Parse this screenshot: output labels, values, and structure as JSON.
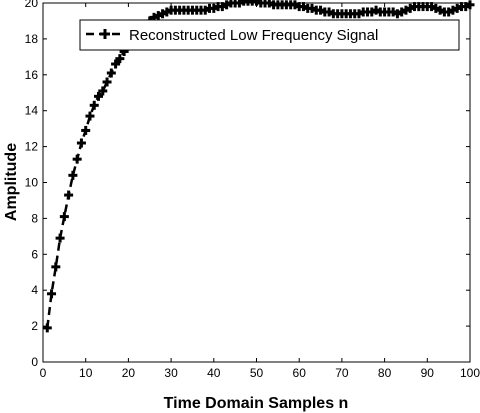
{
  "chart_data": {
    "type": "line",
    "xlabel": "Time Domain Samples n",
    "ylabel": "Amplitude",
    "xlim": [
      0,
      100
    ],
    "ylim": [
      0,
      20
    ],
    "xticks": [
      0,
      10,
      20,
      30,
      40,
      50,
      60,
      70,
      80,
      90,
      100
    ],
    "yticks": [
      0,
      2,
      4,
      6,
      8,
      10,
      12,
      14,
      16,
      18,
      20
    ],
    "grid": false,
    "legend_position": "top-right",
    "series": [
      {
        "name": "Reconstructed Low Frequency Signal",
        "line_style": "dashed",
        "marker": "plus",
        "color": "#000000",
        "x": [
          1,
          2,
          3,
          4,
          5,
          6,
          7,
          8,
          9,
          10,
          11,
          12,
          13,
          14,
          15,
          16,
          17,
          18,
          19,
          20,
          21,
          22,
          23,
          24,
          25,
          26,
          27,
          28,
          29,
          30,
          31,
          32,
          33,
          34,
          35,
          36,
          37,
          38,
          39,
          40,
          41,
          42,
          43,
          44,
          45,
          46,
          47,
          48,
          49,
          50,
          51,
          52,
          53,
          54,
          55,
          56,
          57,
          58,
          59,
          60,
          61,
          62,
          63,
          64,
          65,
          66,
          67,
          68,
          69,
          70,
          71,
          72,
          73,
          74,
          75,
          76,
          77,
          78,
          79,
          80,
          81,
          82,
          83,
          84,
          85,
          86,
          87,
          88,
          89,
          90,
          91,
          92,
          93,
          94,
          95,
          96,
          97,
          98,
          99,
          100
        ],
        "y": [
          1.9,
          3.8,
          5.3,
          6.9,
          8.1,
          9.3,
          10.4,
          11.3,
          12.2,
          12.9,
          13.7,
          14.3,
          14.8,
          15.1,
          15.6,
          16.1,
          16.6,
          16.9,
          17.3,
          17.6,
          17.9,
          18.2,
          18.5,
          18.8,
          19.0,
          19.2,
          19.3,
          19.4,
          19.5,
          19.6,
          19.6,
          19.6,
          19.6,
          19.6,
          19.6,
          19.6,
          19.6,
          19.6,
          19.7,
          19.7,
          19.8,
          19.8,
          19.9,
          20.0,
          20.0,
          20.0,
          20.1,
          20.1,
          20.1,
          20.1,
          20.0,
          20.0,
          20.0,
          19.9,
          19.9,
          19.9,
          19.9,
          19.9,
          19.9,
          19.8,
          19.8,
          19.7,
          19.7,
          19.6,
          19.6,
          19.5,
          19.5,
          19.4,
          19.4,
          19.4,
          19.4,
          19.4,
          19.4,
          19.4,
          19.5,
          19.5,
          19.5,
          19.6,
          19.5,
          19.5,
          19.5,
          19.5,
          19.4,
          19.5,
          19.6,
          19.7,
          19.8,
          19.8,
          19.8,
          19.8,
          19.8,
          19.7,
          19.6,
          19.5,
          19.5,
          19.6,
          19.7,
          19.8,
          19.8,
          19.9
        ]
      }
    ]
  }
}
